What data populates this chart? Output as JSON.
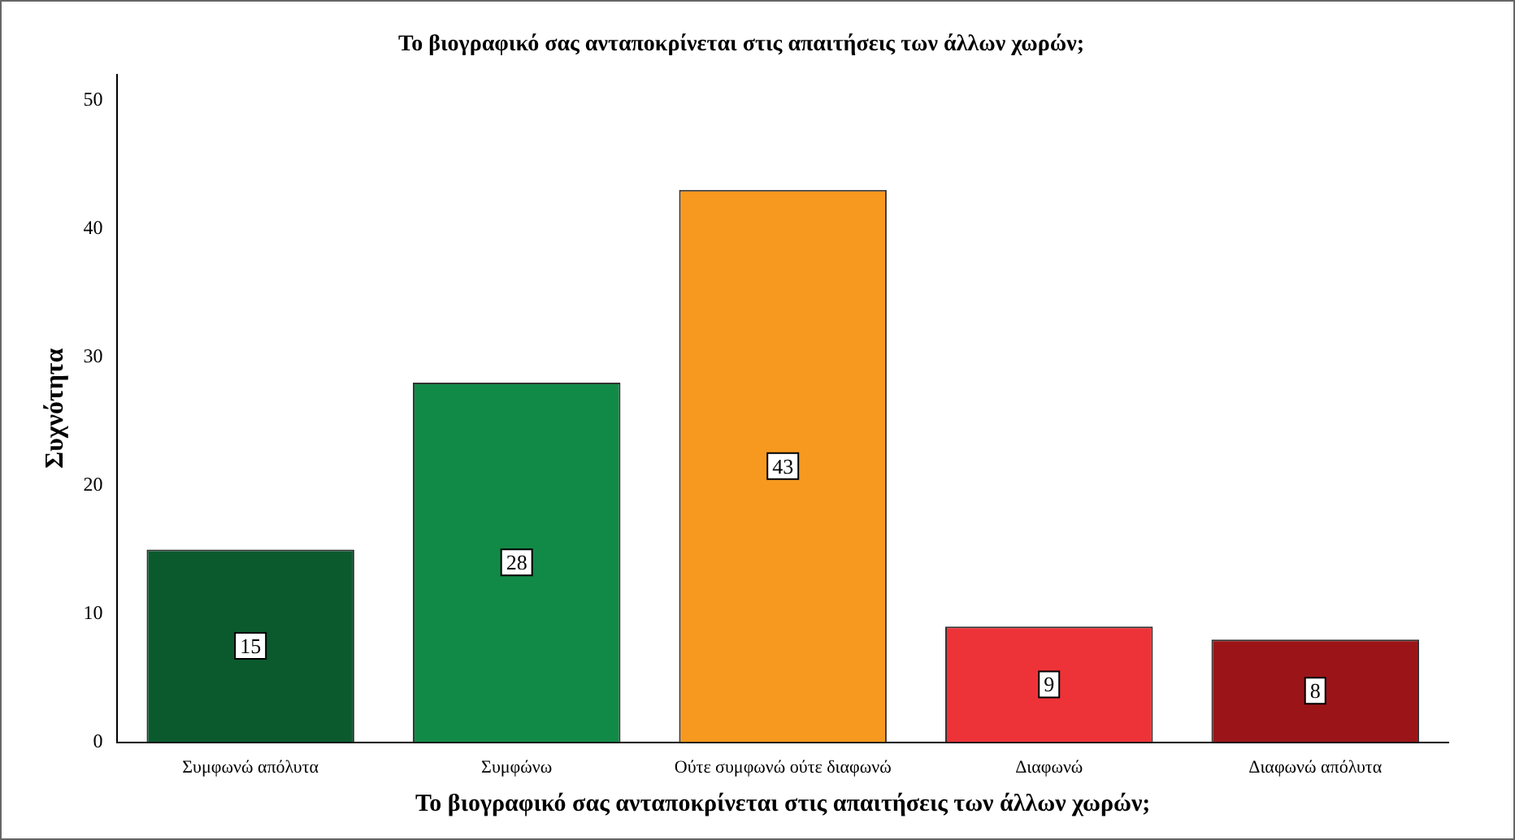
{
  "chart_data": {
    "type": "bar",
    "title": "Το βιογραφικό σας ανταποκρίνεται στις απαιτήσεις των άλλων χωρών;",
    "xlabel": "Το βιογραφικό σας ανταποκρίνεται στις απαιτήσεις των άλλων χωρών;",
    "ylabel": "Συχνότητα",
    "categories": [
      "Συμφωνώ απόλυτα",
      "Συμφώνω",
      "Ούτε συμφωνώ ούτε διαφωνώ",
      "Διαφωνώ",
      "Διαφωνώ απόλυτα"
    ],
    "values": [
      15,
      28,
      43,
      9,
      8
    ],
    "colors": [
      "#0b5a2e",
      "#128a47",
      "#f7991e",
      "#ee3338",
      "#9b1418"
    ],
    "ylim": [
      0,
      52
    ],
    "yticks": [
      0,
      10,
      20,
      30,
      40,
      50
    ],
    "grid": false,
    "legend": false,
    "data_labels": true
  }
}
